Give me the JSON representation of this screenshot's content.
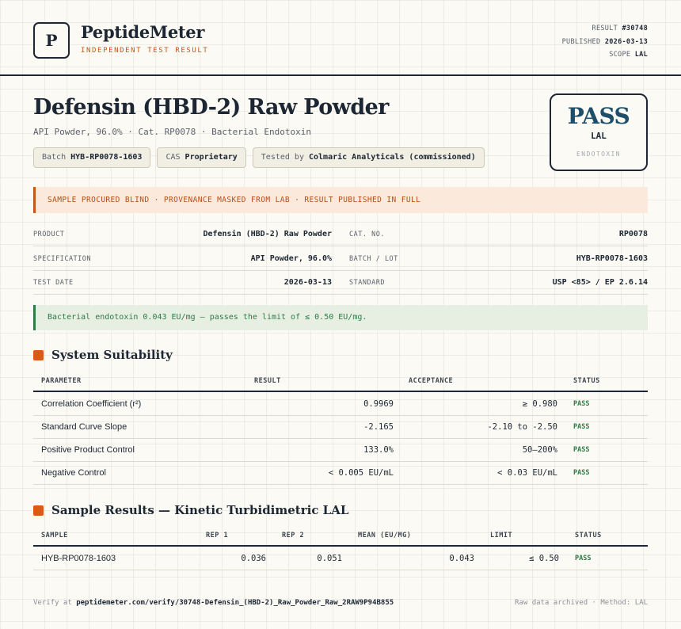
{
  "header": {
    "logo_letter": "P",
    "brand": "PeptideMeter",
    "brand_sub": "INDEPENDENT TEST RESULT",
    "result_label": "RESULT",
    "result_value": "#30748",
    "published_label": "PUBLISHED",
    "published_value": "2026-03-13",
    "scope_label": "SCOPE",
    "scope_value": "LAL"
  },
  "title": {
    "product": "Defensin (HBD-2) Raw Powder",
    "subtitle": "API Powder, 96.0% · Cat. RP0078 · Bacterial Endotoxin"
  },
  "chips": [
    {
      "label": "Batch",
      "value": "HYB-RP0078-1603"
    },
    {
      "label": "CAS",
      "value": "Proprietary"
    },
    {
      "label": "Tested by",
      "value": "Colmaric Analyticals (commissioned)"
    }
  ],
  "verdict_badge": {
    "word": "PASS",
    "method": "LAL",
    "category": "ENDOTOXIN"
  },
  "notice": "SAMPLE PROCURED BLIND · PROVENANCE MASKED FROM LAB · RESULT PUBLISHED IN FULL",
  "info": {
    "product_label": "PRODUCT",
    "product_value": "Defensin (HBD-2) Raw Powder",
    "cat_label": "CAT. NO.",
    "cat_value": "RP0078",
    "spec_label": "SPECIFICATION",
    "spec_value": "API Powder, 96.0%",
    "batch_label": "BATCH / LOT",
    "batch_value": "HYB-RP0078-1603",
    "date_label": "TEST DATE",
    "date_value": "2026-03-13",
    "standard_label": "STANDARD",
    "standard_value": "USP <85> / EP 2.6.14"
  },
  "verdict_text": "Bacterial endotoxin 0.043 EU/mg — passes the limit of ≤ 0.50 EU/mg.",
  "suitability": {
    "title": "System Suitability",
    "headers": {
      "parameter": "PARAMETER",
      "result": "RESULT",
      "acceptance": "ACCEPTANCE",
      "status": "STATUS"
    },
    "rows": [
      {
        "parameter": "Correlation Coefficient (r²)",
        "result": "0.9969",
        "acceptance": "≥ 0.980",
        "status": "PASS"
      },
      {
        "parameter": "Standard Curve Slope",
        "result": "-2.165",
        "acceptance": "-2.10 to -2.50",
        "status": "PASS"
      },
      {
        "parameter": "Positive Product Control",
        "result": "133.0%",
        "acceptance": "50–200%",
        "status": "PASS"
      },
      {
        "parameter": "Negative Control",
        "result": "< 0.005 EU/mL",
        "acceptance": "< 0.03 EU/mL",
        "status": "PASS"
      }
    ]
  },
  "samples": {
    "title": "Sample Results — Kinetic Turbidimetric LAL",
    "headers": {
      "sample": "SAMPLE",
      "rep1": "REP 1",
      "rep2": "REP 2",
      "mean": "MEAN (EU/MG)",
      "limit": "LIMIT",
      "status": "STATUS"
    },
    "rows": [
      {
        "sample": "HYB-RP0078-1603",
        "rep1": "0.036",
        "rep2": "0.051",
        "mean": "0.043",
        "limit": "≤ 0.50",
        "status": "PASS"
      }
    ]
  },
  "footer": {
    "verify_prefix": "Verify at",
    "verify_url": "peptidemeter.com/verify/30748-Defensin_(HBD-2)_Raw_Powder_Raw_2RAW9P94B855",
    "right": "Raw data archived · Method: LAL"
  },
  "colors": {
    "ink": "#1c2733",
    "accent": "#dd5a16",
    "pass_green": "#2f7a45",
    "pass_blue": "#1d4e6a"
  }
}
